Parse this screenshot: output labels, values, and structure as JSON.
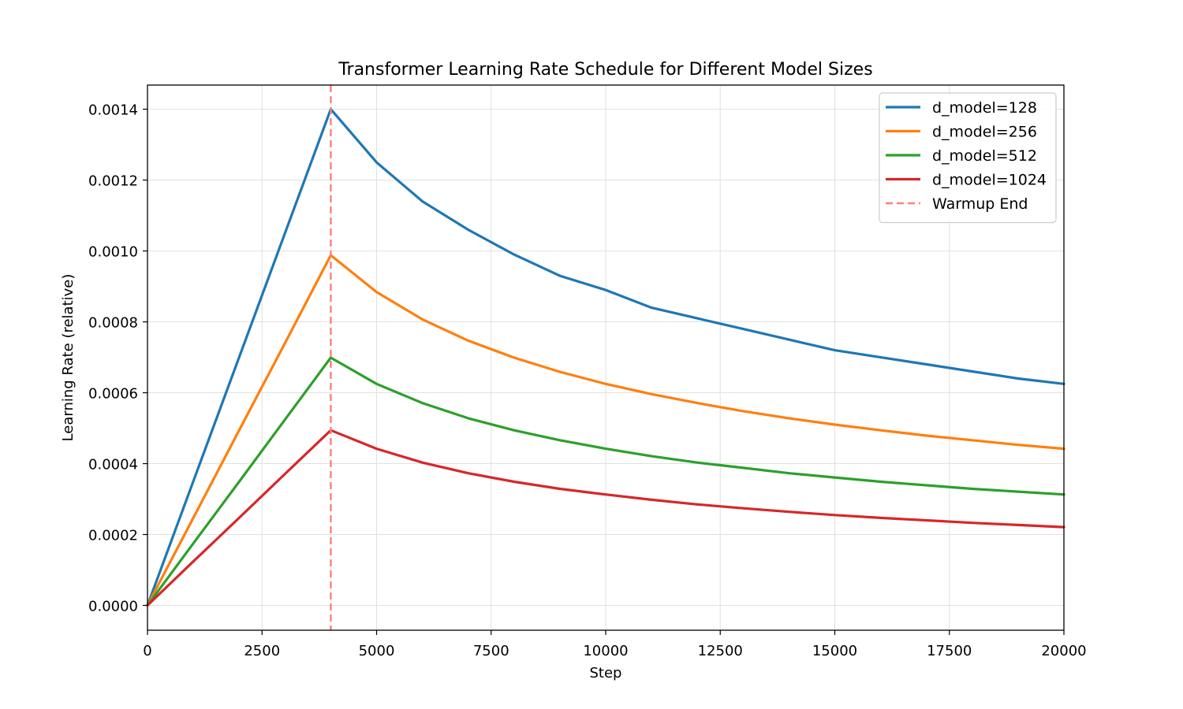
{
  "chart_data": {
    "type": "line",
    "title": "Transformer Learning Rate Schedule for Different Model Sizes",
    "xlabel": "Step",
    "ylabel": "Learning Rate (relative)",
    "xlim": [
      0,
      20000
    ],
    "ylim": [
      -7e-05,
      0.001468
    ],
    "x_ticks": [
      0,
      2500,
      5000,
      7500,
      10000,
      12500,
      15000,
      17500,
      20000
    ],
    "x_tick_labels": [
      "0",
      "2500",
      "5000",
      "7500",
      "10000",
      "12500",
      "15000",
      "17500",
      "20000"
    ],
    "y_ticks": [
      0,
      0.0002,
      0.0004,
      0.0006,
      0.0008,
      0.001,
      0.0012,
      0.0014
    ],
    "y_tick_labels": [
      "0.0000",
      "0.0002",
      "0.0004",
      "0.0006",
      "0.0008",
      "0.0010",
      "0.0012",
      "0.0014"
    ],
    "grid": true,
    "legend_position": "top-right",
    "x": [
      0,
      1000,
      2000,
      3000,
      4000,
      5000,
      6000,
      7000,
      8000,
      9000,
      10000,
      11000,
      12000,
      13000,
      14000,
      15000,
      16000,
      17000,
      18000,
      19000,
      20000
    ],
    "series": [
      {
        "name": "d_model=128",
        "color": "#1f77b4",
        "values": [
          0,
          0.00035,
          0.0007,
          0.00105,
          0.0014,
          0.00125,
          0.00114,
          0.00106,
          0.00099,
          0.00093,
          0.00089,
          0.00084,
          0.00081,
          0.00078,
          0.00075,
          0.00072,
          0.0007,
          0.00068,
          0.00066,
          0.00064,
          0.000625
        ]
      },
      {
        "name": "d_model=256",
        "color": "#ff7f0e",
        "values": [
          0,
          0.000247,
          0.000494,
          0.00074,
          0.000988,
          0.000884,
          0.000807,
          0.000747,
          0.000699,
          0.000659,
          0.000625,
          0.000596,
          0.000571,
          0.000548,
          0.000528,
          0.00051,
          0.000494,
          0.000479,
          0.000466,
          0.000453,
          0.000442
        ]
      },
      {
        "name": "d_model=512",
        "color": "#2ca02c",
        "values": [
          0,
          0.000175,
          0.000349,
          0.000524,
          0.000699,
          0.000625,
          0.000571,
          0.000528,
          0.000494,
          0.000466,
          0.000442,
          0.000421,
          0.000403,
          0.000388,
          0.000373,
          0.000361,
          0.000349,
          0.000339,
          0.000329,
          0.000321,
          0.000313
        ]
      },
      {
        "name": "d_model=1024",
        "color": "#d62728",
        "values": [
          0,
          0.000124,
          0.000247,
          0.000371,
          0.000494,
          0.000442,
          0.000403,
          0.000373,
          0.000349,
          0.000329,
          0.000313,
          0.000298,
          0.000285,
          0.000274,
          0.000264,
          0.000255,
          0.000247,
          0.00024,
          0.000233,
          0.000227,
          0.000221
        ]
      }
    ],
    "vlines": [
      {
        "name": "Warmup End",
        "x": 4000,
        "color": "#ff7f7f",
        "style": "dashed"
      }
    ]
  }
}
